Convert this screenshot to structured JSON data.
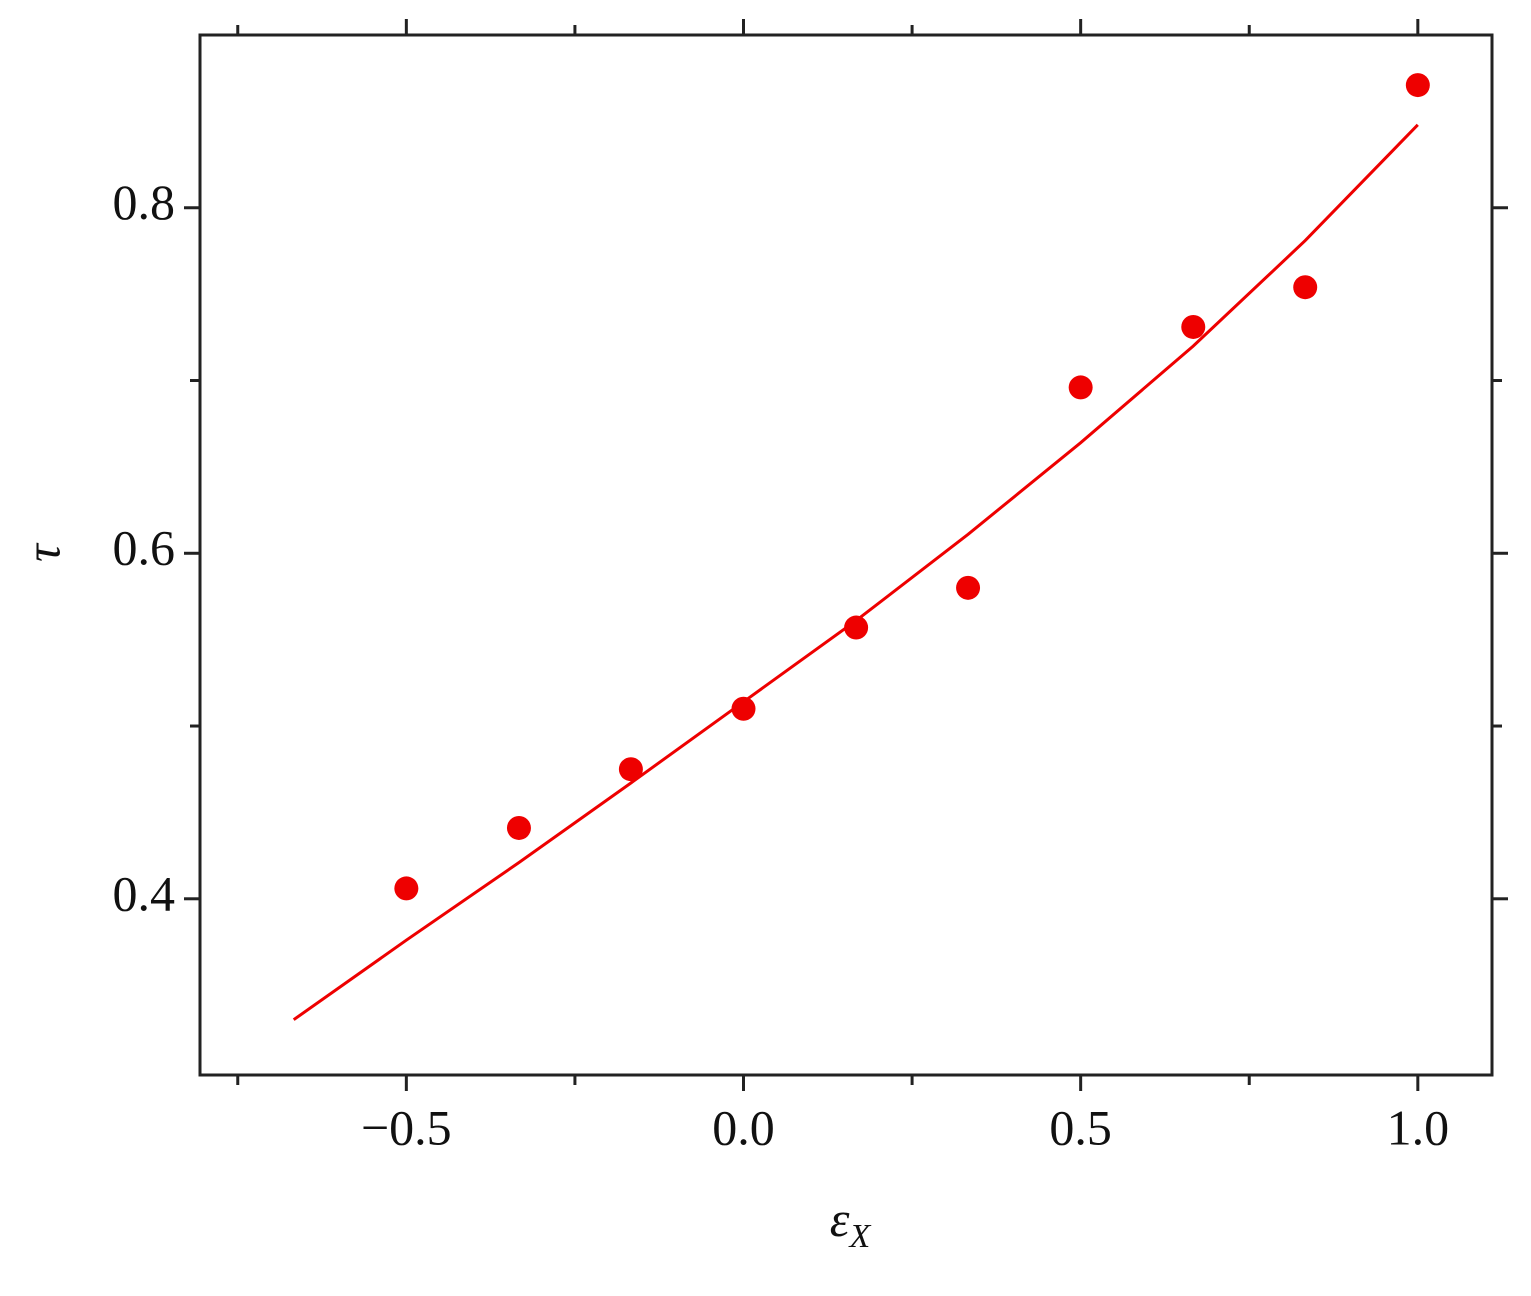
{
  "chart_data": {
    "type": "scatter",
    "xlabel": "ε",
    "xlabel_subscript": "X",
    "ylabel": "τ",
    "xlim": [
      -0.806,
      1.11
    ],
    "ylim": [
      0.298,
      0.9
    ],
    "xticks": [
      {
        "value": -0.5,
        "label": "−0.5"
      },
      {
        "value": 0,
        "label": "0.0"
      },
      {
        "value": 0.5,
        "label": "0.5"
      },
      {
        "value": 1,
        "label": "1.0"
      }
    ],
    "xminor": [
      -0.75,
      -0.25,
      0.25,
      0.75
    ],
    "yticks": [
      0.4,
      0.6,
      0.8
    ],
    "yminor": [
      0.5,
      0.7
    ],
    "series": [
      {
        "type": "scatter",
        "color": "#ee0000",
        "x": [
          -0.5,
          -0.333,
          -0.167,
          0,
          0.167,
          0.333,
          0.5,
          0.667,
          0.833,
          1.0
        ],
        "values": [
          0.406,
          0.441,
          0.475,
          0.51,
          0.557,
          0.58,
          0.696,
          0.731,
          0.754,
          0.871
        ]
      },
      {
        "type": "line",
        "color": "#ee0000",
        "x": [
          -0.667,
          -0.5,
          -0.333,
          -0.167,
          0,
          0.167,
          0.333,
          0.5,
          0.667,
          0.833,
          1.0
        ],
        "values": [
          0.33,
          0.376,
          0.421,
          0.467,
          0.514,
          0.561,
          0.611,
          0.664,
          0.72,
          0.781,
          0.848
        ]
      }
    ]
  }
}
